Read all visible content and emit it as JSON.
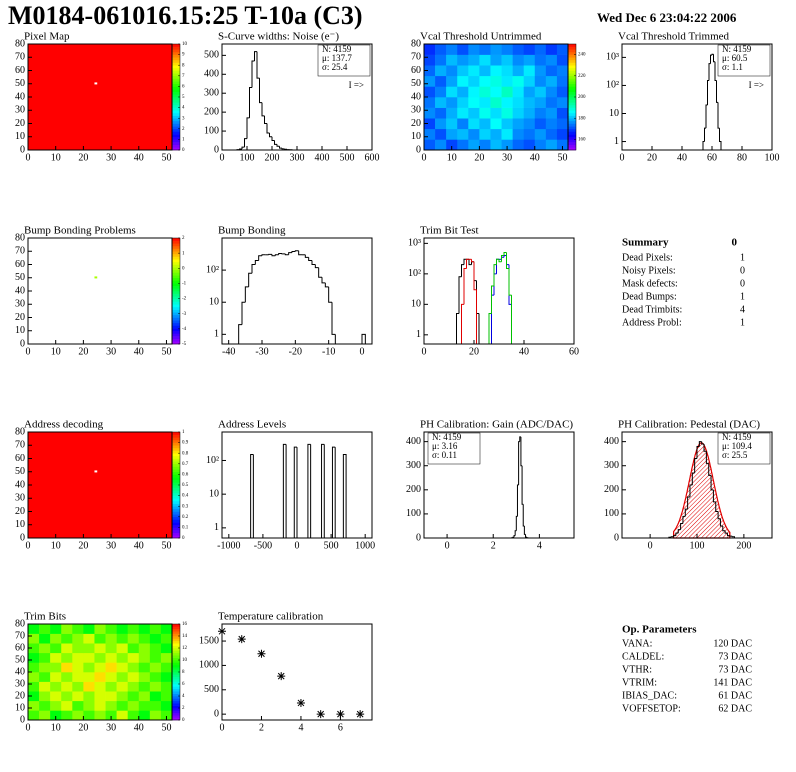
{
  "header": {
    "title": "M0184-061016.15:25 T-10a (C3)",
    "date": "Wed Dec  6 23:04:22 2006"
  },
  "chart_data": [
    {
      "type": "heatmap",
      "title": "Pixel Map",
      "xlim": [
        0,
        52
      ],
      "ylim": [
        0,
        80
      ],
      "xticks": [
        0,
        10,
        20,
        30,
        40,
        50
      ],
      "yticks": [
        0,
        10,
        20,
        30,
        40,
        50,
        60,
        70,
        80
      ],
      "zlim": [
        0,
        10
      ],
      "zticks": [
        0,
        1,
        2,
        3,
        4,
        5,
        6,
        7,
        8,
        9,
        10
      ],
      "background": 10,
      "spots": [
        {
          "x": 24,
          "y": 50,
          "z": 0
        }
      ]
    },
    {
      "type": "histogram",
      "title": "S-Curve widths: Noise (e⁻)",
      "xlim": [
        0,
        600
      ],
      "ylim": [
        0,
        560
      ],
      "xticks": [
        0,
        100,
        200,
        300,
        400,
        500,
        600
      ],
      "yticks": [
        0,
        100,
        200,
        300,
        400,
        500
      ],
      "color": "#000000",
      "bins": [
        60,
        70,
        80,
        90,
        100,
        110,
        120,
        130,
        140,
        150,
        160,
        170,
        180,
        190,
        200,
        210,
        220,
        230,
        240,
        250,
        260,
        270,
        280
      ],
      "values": [
        2,
        5,
        15,
        60,
        170,
        330,
        470,
        520,
        380,
        250,
        180,
        140,
        90,
        70,
        50,
        30,
        20,
        10,
        6,
        4,
        2,
        1
      ],
      "stats": [
        {
          "text": "N: 4159"
        },
        {
          "text": "μ: 137.7"
        },
        {
          "text": "σ: 25.4"
        }
      ],
      "annotation": "I =>"
    },
    {
      "type": "heatmap",
      "title": "Vcal Threshold Untrimmed",
      "xlim": [
        0,
        52
      ],
      "ylim": [
        0,
        80
      ],
      "xticks": [
        0,
        10,
        20,
        30,
        40,
        50
      ],
      "yticks": [
        0,
        10,
        20,
        30,
        40,
        50,
        60,
        70,
        80
      ],
      "zlim": [
        150,
        250
      ],
      "zticks": [
        160,
        180,
        200,
        220,
        240
      ],
      "z": [
        [
          172,
          176,
          170,
          174,
          178,
          175,
          180,
          177,
          173,
          171,
          175,
          178,
          174
        ],
        [
          175,
          171,
          178,
          180,
          176,
          182,
          179,
          184,
          176,
          174,
          177,
          173,
          170
        ],
        [
          170,
          177,
          181,
          175,
          183,
          180,
          186,
          181,
          178,
          176,
          172,
          175,
          173
        ],
        [
          176,
          173,
          179,
          184,
          181,
          187,
          183,
          188,
          182,
          179,
          175,
          177,
          171
        ],
        [
          174,
          180,
          177,
          182,
          186,
          184,
          190,
          185,
          183,
          180,
          178,
          174,
          176
        ],
        [
          171,
          175,
          183,
          179,
          185,
          189,
          186,
          191,
          184,
          178,
          181,
          176,
          172
        ],
        [
          177,
          172,
          178,
          185,
          182,
          186,
          188,
          184,
          187,
          182,
          176,
          179,
          174
        ],
        [
          173,
          179,
          176,
          181,
          184,
          180,
          185,
          183,
          179,
          184,
          177,
          173,
          175
        ],
        [
          170,
          174,
          180,
          177,
          179,
          183,
          178,
          181,
          176,
          178,
          174,
          176,
          171
        ],
        [
          168,
          172,
          175,
          171,
          176,
          174,
          177,
          175,
          172,
          170,
          173,
          169,
          172
        ]
      ]
    },
    {
      "type": "histogram",
      "title": "Vcal Threshold Trimmed",
      "log_y": true,
      "xlim": [
        0,
        100
      ],
      "ylim": [
        0.5,
        3000
      ],
      "xticks": [
        0,
        20,
        40,
        60,
        80,
        100
      ],
      "yticks": [
        1,
        10,
        {
          "value": 100,
          "label": "10²"
        },
        {
          "value": 1000,
          "label": "10³"
        }
      ],
      "color": "#000000",
      "bins": [
        54,
        55,
        56,
        57,
        58,
        59,
        60,
        61,
        62,
        63,
        64,
        65,
        66
      ],
      "values": [
        1,
        3,
        20,
        150,
        600,
        1200,
        1300,
        700,
        150,
        25,
        3,
        1
      ],
      "stats": [
        {
          "text": "N: 4159"
        },
        {
          "text": "μ: 60.5"
        },
        {
          "text": "σ:  1.1"
        }
      ],
      "annotation": "I =>"
    },
    {
      "type": "heatmap",
      "title": "Bump Bonding Problems",
      "xlim": [
        0,
        52
      ],
      "ylim": [
        0,
        80
      ],
      "xticks": [
        0,
        10,
        20,
        30,
        40,
        50
      ],
      "yticks": [
        0,
        10,
        20,
        30,
        40,
        50,
        60,
        70,
        80
      ],
      "zlim": [
        -5,
        2
      ],
      "zticks": [
        -5,
        -4,
        -3,
        -2,
        -1,
        0,
        1,
        2
      ],
      "spots": [
        {
          "x": 24,
          "y": 50,
          "z": 0
        }
      ]
    },
    {
      "type": "histogram",
      "title": "Bump Bonding",
      "log_y": true,
      "xlim": [
        -42,
        3
      ],
      "ylim": [
        0.5,
        1000
      ],
      "xticks": [
        -40,
        -30,
        -20,
        -10,
        0
      ],
      "yticks": [
        1,
        10,
        {
          "value": 100,
          "label": "10²"
        }
      ],
      "color": "#000000",
      "bins": [
        -37,
        -36,
        -35,
        -34,
        -33,
        -32,
        -31,
        -30,
        -29,
        -28,
        -27,
        -26,
        -25,
        -24,
        -23,
        -22,
        -21,
        -20,
        -19,
        -18,
        -17,
        -16,
        -15,
        -14,
        -13,
        -12,
        -11,
        -10,
        -9,
        -8,
        -7,
        -6,
        -5,
        -4,
        -3,
        -2,
        -1,
        0,
        1
      ],
      "values": [
        2,
        10,
        30,
        80,
        150,
        200,
        280,
        300,
        300,
        310,
        280,
        300,
        330,
        320,
        300,
        350,
        380,
        400,
        300,
        300,
        250,
        200,
        150,
        120,
        60,
        40,
        30,
        10,
        1,
        0,
        0,
        0,
        0,
        0,
        0,
        0,
        0,
        1
      ]
    },
    {
      "type": "histogram",
      "title": "Trim Bit Test",
      "log_y": true,
      "xlim": [
        0,
        60
      ],
      "ylim": [
        0.5,
        1500
      ],
      "xticks": [
        0,
        20,
        40,
        60
      ],
      "yticks": [
        1,
        10,
        {
          "value": 100,
          "label": "10²"
        },
        {
          "value": 1000,
          "label": "10³"
        }
      ],
      "bins": [
        10,
        11,
        12,
        13,
        14,
        15,
        16,
        17,
        18,
        19,
        20,
        21,
        22,
        23,
        24,
        25,
        26,
        27,
        28,
        29,
        30,
        31,
        32,
        33,
        34,
        35,
        36
      ],
      "series": [
        {
          "color": "#000000",
          "values": [
            0,
            0,
            0,
            5,
            80,
            200,
            300,
            300,
            200,
            250,
            60,
            5,
            0,
            0,
            0,
            0,
            0,
            0,
            0,
            0,
            0,
            0,
            0,
            0,
            0,
            0
          ]
        },
        {
          "color": "#e00000",
          "values": [
            0,
            0,
            0,
            0,
            0,
            10,
            150,
            300,
            300,
            250,
            30,
            0,
            0,
            0,
            0,
            0,
            0,
            0,
            0,
            0,
            0,
            0,
            0,
            0,
            0,
            0
          ]
        },
        {
          "color": "#0000e0",
          "values": [
            0,
            0,
            0,
            0,
            0,
            0,
            0,
            0,
            0,
            0,
            0,
            0,
            0,
            0,
            0,
            0,
            0,
            20,
            100,
            300,
            300,
            350,
            400,
            200,
            10,
            0
          ]
        },
        {
          "color": "#00c000",
          "values": [
            0,
            0,
            0,
            0,
            0,
            0,
            0,
            0,
            0,
            0,
            0,
            0,
            0,
            0,
            0,
            0,
            5,
            40,
            200,
            300,
            250,
            400,
            500,
            150,
            20,
            0
          ]
        }
      ]
    },
    {
      "type": "heatmap",
      "title": "Address decoding",
      "xlim": [
        0,
        52
      ],
      "ylim": [
        0,
        80
      ],
      "xticks": [
        0,
        10,
        20,
        30,
        40,
        50
      ],
      "yticks": [
        0,
        10,
        20,
        30,
        40,
        50,
        60,
        70,
        80
      ],
      "zlim": [
        0,
        1
      ],
      "zticks": [
        0,
        0.1,
        0.2,
        0.3,
        0.4,
        0.5,
        0.6,
        0.7,
        0.8,
        0.9,
        1
      ],
      "background": 1,
      "spots": [
        {
          "x": 24,
          "y": 50,
          "z": 0
        }
      ]
    },
    {
      "type": "histogram",
      "title": "Address Levels",
      "log_y": true,
      "xlim": [
        -1100,
        1100
      ],
      "ylim": [
        0.5,
        700
      ],
      "xticks": [
        -1000,
        -500,
        0,
        500,
        1000
      ],
      "yticks": [
        1,
        10,
        {
          "value": 100,
          "label": "10²"
        }
      ],
      "color": "#000000",
      "bins": [
        -720,
        -680,
        -640,
        -600,
        -560,
        -520,
        -480,
        -440,
        -400,
        -360,
        -320,
        -280,
        -240,
        -200,
        -160,
        -120,
        -80,
        -40,
        0,
        40,
        80,
        120,
        160,
        200,
        240,
        280,
        320,
        360,
        400,
        440,
        480,
        520,
        560,
        600,
        640,
        680,
        720
      ],
      "values": [
        0,
        150,
        0,
        0,
        0,
        0,
        0,
        0,
        0,
        0,
        0,
        0,
        0,
        300,
        0,
        0,
        0,
        250,
        0,
        0,
        0,
        0,
        300,
        0,
        0,
        0,
        0,
        300,
        0,
        0,
        0,
        250,
        0,
        0,
        0,
        150
      ]
    },
    {
      "type": "histogram",
      "title": "PH Calibration: Gain (ADC/DAC)",
      "xlim": [
        -1,
        5.5
      ],
      "ylim": [
        0,
        440
      ],
      "xticks": [
        0,
        2,
        4
      ],
      "yticks": [
        0,
        100,
        200,
        300,
        400
      ],
      "color": "#000000",
      "bins": [
        2.8,
        2.85,
        2.9,
        2.95,
        3.0,
        3.05,
        3.1,
        3.15,
        3.2,
        3.25,
        3.3,
        3.35,
        3.4,
        3.45,
        3.5
      ],
      "values": [
        1,
        3,
        10,
        30,
        90,
        220,
        400,
        420,
        300,
        140,
        50,
        15,
        4,
        1
      ],
      "stats_left": true,
      "stats": [
        {
          "text": "N: 4159"
        },
        {
          "text": "μ: 3.16"
        },
        {
          "text": "σ: 0.11"
        }
      ]
    },
    {
      "type": "histogram",
      "title": "PH Calibration: Pedestal (DAC)",
      "xlim": [
        -60,
        260
      ],
      "ylim": [
        0,
        440
      ],
      "xticks": [
        0,
        100,
        200
      ],
      "yticks": [
        0,
        100,
        200,
        300,
        400
      ],
      "color": "#000000",
      "bins": [
        40,
        45,
        50,
        55,
        60,
        65,
        70,
        75,
        80,
        85,
        90,
        95,
        100,
        105,
        110,
        115,
        120,
        125,
        130,
        135,
        140,
        145,
        150,
        155,
        160,
        165,
        170,
        175,
        180
      ],
      "values": [
        3,
        5,
        10,
        20,
        35,
        60,
        90,
        120,
        170,
        220,
        270,
        330,
        380,
        400,
        390,
        360,
        310,
        260,
        200,
        150,
        110,
        80,
        50,
        30,
        20,
        10,
        8,
        5
      ],
      "fit": {
        "color": "#e00000",
        "amplitude": 395,
        "mean": 109.4,
        "sigma": 25.5,
        "range": [
          50,
          170
        ]
      },
      "stats": [
        {
          "text": "N: 4159",
          "color": "#000000"
        },
        {
          "text": "μ: 109.4",
          "color": "#e00000"
        },
        {
          "text": "σ: 25.5",
          "color": "#e00000"
        }
      ]
    },
    {
      "type": "heatmap",
      "title": "Trim Bits",
      "xlim": [
        0,
        52
      ],
      "ylim": [
        0,
        80
      ],
      "xticks": [
        0,
        10,
        20,
        30,
        40,
        50
      ],
      "yticks": [
        0,
        10,
        20,
        30,
        40,
        50,
        60,
        70,
        80
      ],
      "zlim": [
        0,
        16
      ],
      "zticks": [
        0,
        2,
        4,
        6,
        8,
        10,
        12,
        14,
        16
      ],
      "z": [
        [
          10,
          11,
          9,
          10,
          11,
          10,
          11,
          10,
          12,
          10,
          9,
          11,
          10
        ],
        [
          11,
          10,
          11,
          12,
          10,
          11,
          12,
          11,
          10,
          11,
          10,
          10,
          9
        ],
        [
          9,
          11,
          12,
          11,
          12,
          11,
          12,
          12,
          11,
          10,
          11,
          9,
          10
        ],
        [
          10,
          12,
          11,
          12,
          11,
          13,
          12,
          11,
          12,
          11,
          10,
          11,
          10
        ],
        [
          11,
          10,
          12,
          11,
          12,
          12,
          13,
          12,
          11,
          12,
          11,
          10,
          9
        ],
        [
          10,
          11,
          11,
          13,
          12,
          11,
          12,
          13,
          12,
          11,
          10,
          11,
          10
        ],
        [
          9,
          10,
          12,
          11,
          12,
          12,
          11,
          12,
          11,
          12,
          11,
          10,
          11
        ],
        [
          10,
          11,
          10,
          12,
          11,
          11,
          12,
          11,
          12,
          10,
          11,
          10,
          9
        ],
        [
          11,
          9,
          11,
          10,
          11,
          12,
          10,
          11,
          10,
          11,
          10,
          9,
          10
        ],
        [
          9,
          10,
          9,
          11,
          10,
          9,
          11,
          10,
          9,
          10,
          9,
          10,
          9
        ]
      ]
    },
    {
      "type": "scatter",
      "title": "Temperature calibration",
      "xlim": [
        0,
        7.6
      ],
      "ylim": [
        -120,
        1850
      ],
      "xticks": [
        0,
        2,
        4,
        6
      ],
      "yticks": [
        0,
        500,
        1000,
        1500
      ],
      "x": [
        0,
        1,
        2,
        3,
        4,
        5,
        6,
        7
      ],
      "values": [
        1700,
        1540,
        1240,
        780,
        230,
        0,
        0,
        0
      ]
    }
  ],
  "summary": {
    "title": "Summary",
    "value": 0,
    "rows": [
      [
        "Dead Pixels:",
        1
      ],
      [
        "Noisy Pixels:",
        0
      ],
      [
        "Mask defects:",
        0
      ],
      [
        "Dead Bumps:",
        1
      ],
      [
        "Dead Trimbits:",
        4
      ],
      [
        "Address Probl:",
        1
      ]
    ]
  },
  "parameters": {
    "title": "Op. Parameters",
    "rows": [
      [
        "VANA:",
        "120 DAC"
      ],
      [
        "CALDEL:",
        "73 DAC"
      ],
      [
        "VTHR:",
        "73 DAC"
      ],
      [
        "VTRIM:",
        "141 DAC"
      ],
      [
        "IBIAS_DAC:",
        "61 DAC"
      ],
      [
        "VOFFSETOP:",
        "62 DAC"
      ]
    ]
  }
}
